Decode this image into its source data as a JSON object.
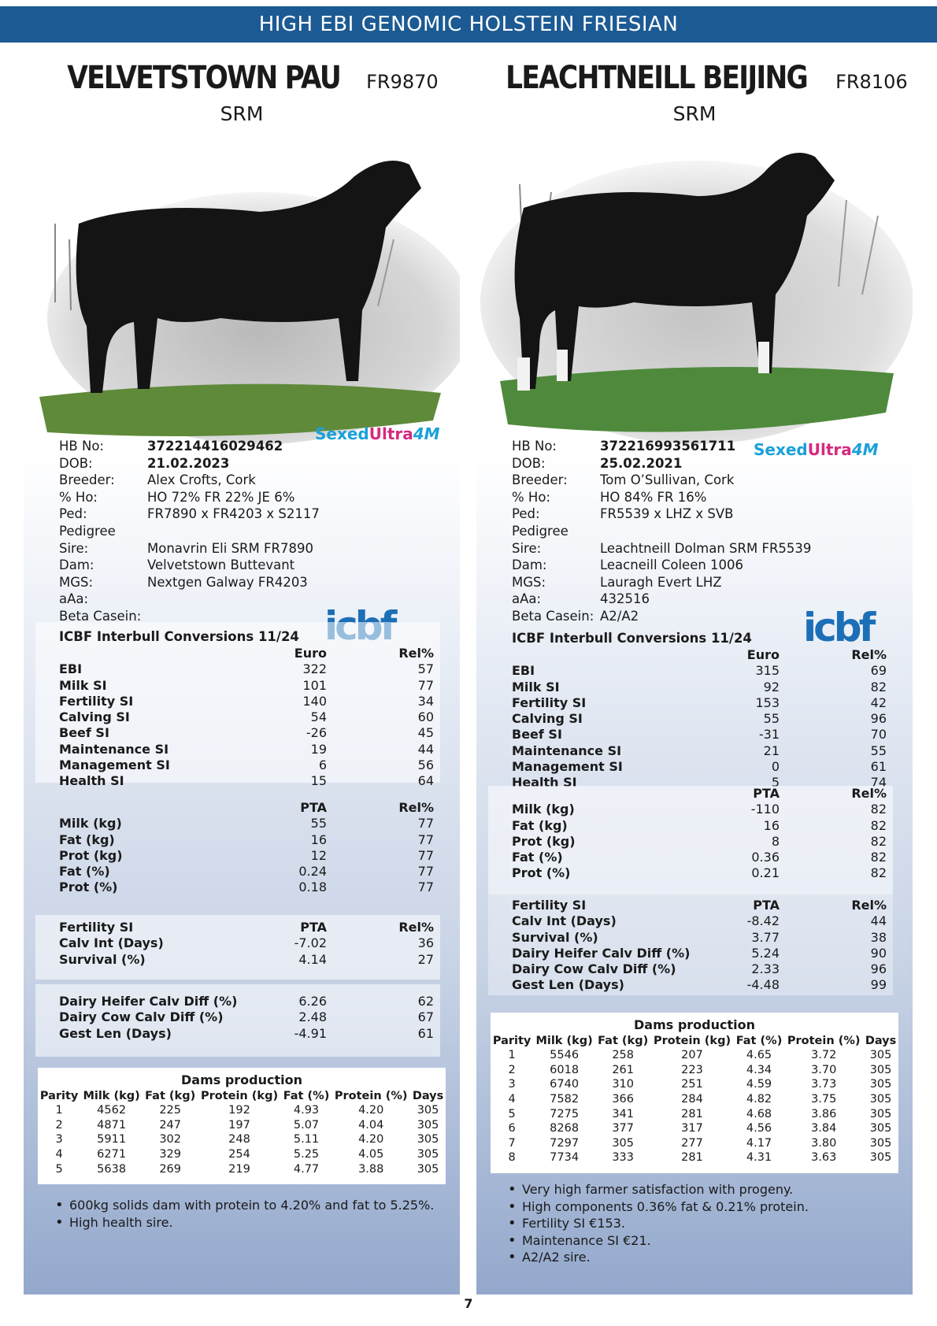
{
  "banner": "HIGH EBI GENOMIC HOLSTEIN FRIESIAN",
  "page_number": "7",
  "bulls": [
    {
      "name": "VELVETSTOWN PAU",
      "code": "FR9870",
      "type": "SRM",
      "logo": {
        "sexed": "Sexed",
        "ultra": "Ultra",
        "fourm": "4M"
      },
      "icbf_logo": "icbf",
      "info": [
        {
          "k": "HB No:",
          "v": "372214416029462",
          "bold": true
        },
        {
          "k": "DOB:",
          "v": "21.02.2023",
          "bold": true
        },
        {
          "k": "Breeder:",
          "v": "Alex Crofts, Cork",
          "bold": false
        },
        {
          "k": "% Ho:",
          "v": "HO 72% FR 22% JE 6%",
          "bold": false
        },
        {
          "k": "Ped:",
          "v": "FR7890 x FR4203 x S2117",
          "bold": false
        },
        {
          "k": "Pedigree",
          "v": "",
          "bold": false
        },
        {
          "k": "Sire:",
          "v": "Monavrin Eli SRM FR7890",
          "bold": false
        },
        {
          "k": "Dam:",
          "v": "Velvetstown Buttevant",
          "bold": false
        },
        {
          "k": "MGS:",
          "v": "Nextgen Galway FR4203",
          "bold": false
        },
        {
          "k": "aAa:",
          "v": "",
          "bold": false
        },
        {
          "k": "Beta Casein:",
          "v": "",
          "bold": false
        }
      ],
      "icbf_title": "ICBF Interbull Conversions 11/24",
      "si_head": {
        "c1": "Euro",
        "c2": "Rel%"
      },
      "si": [
        {
          "l": "EBI",
          "c1": "322",
          "c2": "57"
        },
        {
          "l": "Milk SI",
          "c1": "101",
          "c2": "77"
        },
        {
          "l": "Fertility SI",
          "c1": "140",
          "c2": "34"
        },
        {
          "l": "Calving SI",
          "c1": "54",
          "c2": "60"
        },
        {
          "l": "Beef SI",
          "c1": "-26",
          "c2": "45"
        },
        {
          "l": "Maintenance SI",
          "c1": "19",
          "c2": "44"
        },
        {
          "l": "Management SI",
          "c1": "6",
          "c2": "56"
        },
        {
          "l": "Health SI",
          "c1": "15",
          "c2": "64"
        }
      ],
      "pta_head": {
        "c1": "PTA",
        "c2": "Rel%"
      },
      "pta": [
        {
          "l": "Milk (kg)",
          "c1": "55",
          "c2": "77"
        },
        {
          "l": "Fat (kg)",
          "c1": "16",
          "c2": "77"
        },
        {
          "l": "Prot (kg)",
          "c1": "12",
          "c2": "77"
        },
        {
          "l": "Fat (%)",
          "c1": "0.24",
          "c2": "77"
        },
        {
          "l": "Prot (%)",
          "c1": "0.18",
          "c2": "77"
        }
      ],
      "fert_head": {
        "l": "Fertility SI",
        "c1": "PTA",
        "c2": "Rel%"
      },
      "fert": [
        {
          "l": "Calv Int (Days)",
          "c1": "-7.02",
          "c2": "36"
        },
        {
          "l": "Survival (%)",
          "c1": "4.14",
          "c2": "27"
        }
      ],
      "calv": [
        {
          "l": "Dairy Heifer Calv Diff (%)",
          "c1": "6.26",
          "c2": "62"
        },
        {
          "l": "Dairy Cow Calv Diff (%)",
          "c1": "2.48",
          "c2": "67"
        },
        {
          "l": "Gest Len (Days)",
          "c1": "-4.91",
          "c2": "61"
        }
      ],
      "dams_title": "Dams production",
      "dams_cols": [
        "Parity",
        "Milk (kg)",
        "Fat (kg)",
        "Protein (kg)",
        "Fat (%)",
        "Protein (%)",
        "Days"
      ],
      "dams_rows": [
        [
          "1",
          "4562",
          "225",
          "192",
          "4.93",
          "4.20",
          "305"
        ],
        [
          "2",
          "4871",
          "247",
          "197",
          "5.07",
          "4.04",
          "305"
        ],
        [
          "3",
          "5911",
          "302",
          "248",
          "5.11",
          "4.20",
          "305"
        ],
        [
          "4",
          "6271",
          "329",
          "254",
          "5.25",
          "4.05",
          "305"
        ],
        [
          "5",
          "5638",
          "269",
          "219",
          "4.77",
          "3.88",
          "305"
        ]
      ],
      "bullets": [
        "600kg solids dam with protein to 4.20% and fat to 5.25%.",
        "High health sire."
      ]
    },
    {
      "name": "LEACHTNEILL BEIJING",
      "code": "FR8106",
      "type": "SRM",
      "logo": {
        "sexed": "Sexed",
        "ultra": "Ultra",
        "fourm": "4M"
      },
      "icbf_logo": "icbf",
      "info": [
        {
          "k": "HB No:",
          "v": "372216993561711",
          "bold": true
        },
        {
          "k": "DOB:",
          "v": "25.02.2021",
          "bold": true
        },
        {
          "k": "Breeder:",
          "v": "Tom O’Sullivan, Cork",
          "bold": false
        },
        {
          "k": "% Ho:",
          "v": "HO 84% FR 16%",
          "bold": false
        },
        {
          "k": "Ped:",
          "v": "FR5539 x LHZ x SVB",
          "bold": false
        },
        {
          "k": "Pedigree",
          "v": "",
          "bold": false
        },
        {
          "k": "Sire:",
          "v": "Leachtneill Dolman SRM FR5539",
          "bold": false
        },
        {
          "k": "Dam:",
          "v": "Leacneill Coleen 1006",
          "bold": false
        },
        {
          "k": "MGS:",
          "v": "Lauragh Evert LHZ",
          "bold": false
        },
        {
          "k": "aAa:",
          "v": "432516",
          "bold": false
        },
        {
          "k": "Beta Casein:",
          "v": "A2/A2",
          "bold": false
        }
      ],
      "icbf_title": "ICBF Interbull Conversions 11/24",
      "si_head": {
        "c1": "Euro",
        "c2": "Rel%"
      },
      "si": [
        {
          "l": "EBI",
          "c1": "315",
          "c2": "69"
        },
        {
          "l": "Milk SI",
          "c1": "92",
          "c2": "82"
        },
        {
          "l": "Fertility SI",
          "c1": "153",
          "c2": "42"
        },
        {
          "l": "Calving SI",
          "c1": "55",
          "c2": "96"
        },
        {
          "l": "Beef SI",
          "c1": "-31",
          "c2": "70"
        },
        {
          "l": "Maintenance SI",
          "c1": "21",
          "c2": "55"
        },
        {
          "l": "Management SI",
          "c1": "0",
          "c2": "61"
        },
        {
          "l": "Health SI",
          "c1": "5",
          "c2": "74"
        }
      ],
      "pta_head": {
        "c1": "PTA",
        "c2": "Rel%"
      },
      "pta": [
        {
          "l": "Milk (kg)",
          "c1": "-110",
          "c2": "82"
        },
        {
          "l": "Fat (kg)",
          "c1": "16",
          "c2": "82"
        },
        {
          "l": "Prot (kg)",
          "c1": "8",
          "c2": "82"
        },
        {
          "l": "Fat (%)",
          "c1": "0.36",
          "c2": "82"
        },
        {
          "l": "Prot (%)",
          "c1": "0.21",
          "c2": "82"
        }
      ],
      "fert_head": {
        "l": "Fertility SI",
        "c1": "PTA",
        "c2": "Rel%"
      },
      "fert": [
        {
          "l": "Calv Int (Days)",
          "c1": "-8.42",
          "c2": "44"
        },
        {
          "l": "Survival (%)",
          "c1": "3.77",
          "c2": "38"
        },
        {
          "l": "Dairy Heifer Calv Diff (%)",
          "c1": "5.24",
          "c2": "90"
        },
        {
          "l": "Dairy Cow Calv Diff (%)",
          "c1": "2.33",
          "c2": "96"
        },
        {
          "l": "Gest Len (Days)",
          "c1": "-4.48",
          "c2": "99"
        }
      ],
      "dams_title": "Dams production",
      "dams_cols": [
        "Parity",
        "Milk (kg)",
        "Fat (kg)",
        "Protein (kg)",
        "Fat (%)",
        "Protein (%)",
        "Days"
      ],
      "dams_rows": [
        [
          "1",
          "5546",
          "258",
          "207",
          "4.65",
          "3.72",
          "305"
        ],
        [
          "2",
          "6018",
          "261",
          "223",
          "4.34",
          "3.70",
          "305"
        ],
        [
          "3",
          "6740",
          "310",
          "251",
          "4.59",
          "3.73",
          "305"
        ],
        [
          "4",
          "7582",
          "366",
          "284",
          "4.82",
          "3.75",
          "305"
        ],
        [
          "5",
          "7275",
          "341",
          "281",
          "4.68",
          "3.86",
          "305"
        ],
        [
          "6",
          "8268",
          "377",
          "317",
          "4.56",
          "3.84",
          "305"
        ],
        [
          "7",
          "7297",
          "305",
          "277",
          "4.17",
          "3.80",
          "305"
        ],
        [
          "8",
          "7734",
          "333",
          "281",
          "4.31",
          "3.63",
          "305"
        ]
      ],
      "bullets": [
        "Very high farmer satisfaction with progeny.",
        "High components 0.36% fat & 0.21% protein.",
        "Fertility SI €153.",
        "Maintenance SI €21.",
        "A2/A2 sire."
      ]
    }
  ]
}
